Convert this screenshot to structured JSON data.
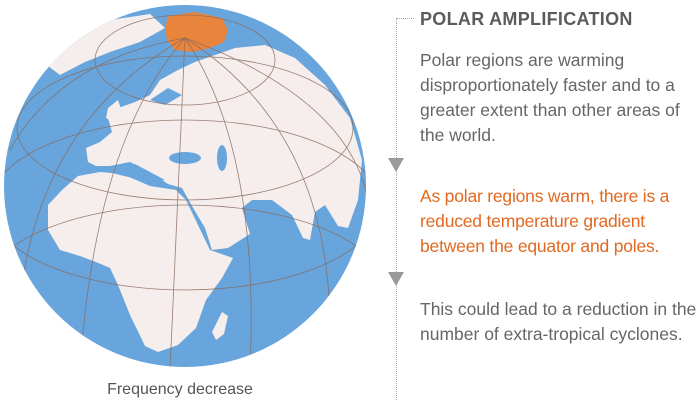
{
  "globe": {
    "caption": "Frequency decrease",
    "colors": {
      "ocean": "#67a5dc",
      "land": "#f5eeec",
      "polar_cap": "#e8843c",
      "graticule": "#8a6a5e"
    }
  },
  "panel": {
    "title": "POLAR AMPLIFICATION",
    "steps": [
      {
        "text": "Polar regions are warming disproportionately faster and to a greater extent than other areas of the world."
      },
      {
        "text": "As polar regions warm, there is a reduced temperature gradient between the equator and poles.",
        "highlight": true
      },
      {
        "text": "This could lead to a reduction in the number of extra-tropical cyclones."
      }
    ],
    "colors": {
      "text": "#666666",
      "highlight": "#e2691f",
      "arrow": "#9a9a9a"
    }
  }
}
